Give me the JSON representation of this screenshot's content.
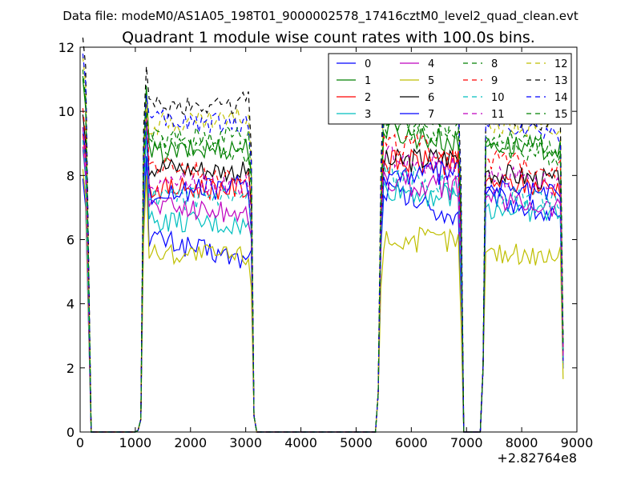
{
  "figure": {
    "suptitle": "Data file: modeM0/AS1A05_198T01_9000002578_17416cztM0_level2_quad_clean.evt"
  },
  "chart_data": {
    "type": "line",
    "title": "Quadrant 1 module wise count rates with 100.0s bins.",
    "xlabel": "",
    "ylabel": "",
    "x_offset_label": "+2.82764e8",
    "xlim": [
      0,
      9000
    ],
    "ylim": [
      0,
      12
    ],
    "xticks": [
      "0",
      "1000",
      "2000",
      "3000",
      "4000",
      "5000",
      "6000",
      "7000",
      "8000",
      "9000"
    ],
    "yticks": [
      "0",
      "2",
      "4",
      "6",
      "8",
      "10",
      "12"
    ],
    "grid": false,
    "legend_position": "top-right",
    "legend_columns": 4,
    "x": [
      50,
      100,
      150,
      200,
      300,
      350,
      400,
      1000,
      1050,
      1100,
      1150,
      1200,
      1250,
      1300,
      1350,
      1400,
      1450,
      1500,
      1550,
      1600,
      1650,
      1700,
      1750,
      1800,
      1850,
      1900,
      1950,
      2000,
      2050,
      2100,
      2150,
      2200,
      2250,
      2300,
      2350,
      2400,
      2450,
      2500,
      2550,
      2600,
      2650,
      2700,
      2750,
      2800,
      2850,
      2900,
      2950,
      3000,
      3050,
      3100,
      3150,
      3200,
      3250,
      3300,
      5300,
      5350,
      5400,
      5450,
      5500,
      5550,
      5600,
      5650,
      5700,
      5750,
      5800,
      5850,
      5900,
      5950,
      6000,
      6050,
      6100,
      6150,
      6200,
      6250,
      6300,
      6350,
      6400,
      6450,
      6500,
      6550,
      6600,
      6650,
      6700,
      6750,
      6800,
      6850,
      6900,
      6950,
      7000,
      7050,
      7100,
      7150,
      7200,
      7250,
      7300,
      7350,
      7400,
      7450,
      7500,
      7550,
      7600,
      7650,
      7700,
      7750,
      7800,
      7850,
      7900,
      7950,
      8000,
      8050,
      8100,
      8150,
      8200,
      8250,
      8300,
      8350,
      8400,
      8450,
      8500,
      8550,
      8600,
      8650,
      8700,
      8750
    ],
    "series": [
      {
        "name": "0",
        "color": "#0000ff",
        "dash": "solid",
        "base": [
          6.4,
          6.1,
          5.8,
          5.5,
          5.3,
          6.0,
          6.3
        ],
        "p1": [
          8.6,
          6.1
        ],
        "p2": [
          7.6,
          6.6
        ],
        "p3": [
          7.4,
          6.6
        ]
      },
      {
        "name": "1",
        "color": "#008000",
        "dash": "solid",
        "base": [
          9.5,
          9.1,
          8.5,
          8.0,
          8.9,
          9.3,
          9.0
        ],
        "p1": [
          10.8,
          8.7
        ],
        "p2": [
          9.4,
          9.0
        ],
        "p3": [
          9.0,
          8.8
        ]
      },
      {
        "name": "2",
        "color": "#ff0000",
        "dash": "solid",
        "base": [
          7.8,
          7.4,
          7.8,
          7.0,
          7.6,
          7.8,
          7.0
        ],
        "p1": [
          9.8,
          7.6
        ],
        "p2": [
          8.4,
          8.4
        ],
        "p3": [
          7.8,
          7.6
        ]
      },
      {
        "name": "3",
        "color": "#00bfbf",
        "dash": "solid",
        "base": [
          7.3,
          6.9,
          6.6,
          6.2,
          6.4,
          6.9,
          6.7
        ],
        "p1": [
          9.4,
          6.6
        ],
        "p2": [
          7.6,
          7.3
        ],
        "p3": [
          7.0,
          6.8
        ]
      },
      {
        "name": "4",
        "color": "#bf00bf",
        "dash": "solid",
        "base": [
          7.4,
          7.0,
          7.1,
          6.8,
          6.8,
          7.0,
          6.8
        ],
        "p1": [
          10.0,
          7.1
        ],
        "p2": [
          7.8,
          7.6
        ],
        "p3": [
          7.3,
          7.0
        ]
      },
      {
        "name": "5",
        "color": "#bfbf00",
        "dash": "solid",
        "base": [
          6.7,
          5.6,
          5.6,
          5.4,
          5.5,
          5.0,
          5.0
        ],
        "p1": [
          8.0,
          5.6
        ],
        "p2": [
          6.0,
          6.0
        ],
        "p3": [
          5.6,
          5.5
        ]
      },
      {
        "name": "6",
        "color": "#000000",
        "dash": "solid",
        "base": [
          8.4,
          8.1,
          8.5,
          8.0,
          8.1,
          8.3,
          7.8
        ],
        "p1": [
          9.9,
          8.3
        ],
        "p2": [
          8.4,
          8.6
        ],
        "p3": [
          8.1,
          7.8
        ]
      },
      {
        "name": "7",
        "color": "#0000ff",
        "dash": "solid",
        "base": [
          8.0,
          7.7,
          7.4,
          7.5,
          7.7,
          7.4,
          7.0
        ],
        "p1": [
          9.6,
          7.4
        ],
        "p2": [
          8.0,
          8.1
        ],
        "p3": [
          7.6,
          7.4
        ]
      },
      {
        "name": "8",
        "color": "#008000",
        "dash": "dashed",
        "base": [
          9.6,
          9.0,
          8.8,
          8.6,
          8.7,
          8.9,
          8.5
        ],
        "p1": [
          10.6,
          9.0
        ],
        "p2": [
          9.5,
          9.4
        ],
        "p3": [
          8.9,
          8.6
        ]
      },
      {
        "name": "9",
        "color": "#ff0000",
        "dash": "dashed",
        "base": [
          8.6,
          8.4,
          8.3,
          7.7,
          8.0,
          8.4,
          8.0
        ],
        "p1": [
          10.2,
          8.3
        ],
        "p2": [
          9.0,
          8.7
        ],
        "p3": [
          8.5,
          8.2
        ]
      },
      {
        "name": "10",
        "color": "#00bfbf",
        "dash": "dashed",
        "base": [
          7.6,
          7.3,
          7.2,
          7.2,
          7.2,
          7.1,
          7.0
        ],
        "p1": [
          9.5,
          7.3
        ],
        "p2": [
          8.0,
          7.7
        ],
        "p3": [
          7.4,
          7.2
        ]
      },
      {
        "name": "11",
        "color": "#bf00bf",
        "dash": "dashed",
        "base": [
          8.0,
          7.7,
          7.9,
          7.6,
          7.7,
          7.8,
          7.6
        ],
        "p1": [
          10.0,
          7.8
        ],
        "p2": [
          8.6,
          8.2
        ],
        "p3": [
          8.0,
          7.7
        ]
      },
      {
        "name": "12",
        "color": "#bfbf00",
        "dash": "dashed",
        "base": [
          10.2,
          9.8,
          9.6,
          9.5,
          9.8,
          9.7,
          9.3
        ],
        "p1": [
          10.3,
          9.6
        ],
        "p2": [
          10.4,
          9.9
        ],
        "p3": [
          9.7,
          9.4
        ]
      },
      {
        "name": "13",
        "color": "#000000",
        "dash": "dashed",
        "base": [
          10.8,
          10.4,
          10.2,
          10.1,
          10.3,
          10.0,
          9.8
        ],
        "p1": [
          11.4,
          10.1
        ],
        "p2": [
          11.0,
          10.5
        ],
        "p3": [
          10.0,
          9.6
        ]
      },
      {
        "name": "14",
        "color": "#0000ff",
        "dash": "dashed",
        "base": [
          10.3,
          9.9,
          9.8,
          9.4,
          9.6,
          9.8,
          9.3
        ],
        "p1": [
          10.5,
          9.7
        ],
        "p2": [
          10.2,
          9.9
        ],
        "p3": [
          9.6,
          9.2
        ]
      },
      {
        "name": "15",
        "color": "#008000",
        "dash": "dashed",
        "base": [
          9.8,
          9.6,
          9.1,
          9.0,
          9.3,
          9.1,
          8.8
        ],
        "p1": [
          10.0,
          9.1
        ],
        "p2": [
          9.7,
          9.6
        ],
        "p3": [
          9.2,
          8.9
        ]
      }
    ]
  }
}
